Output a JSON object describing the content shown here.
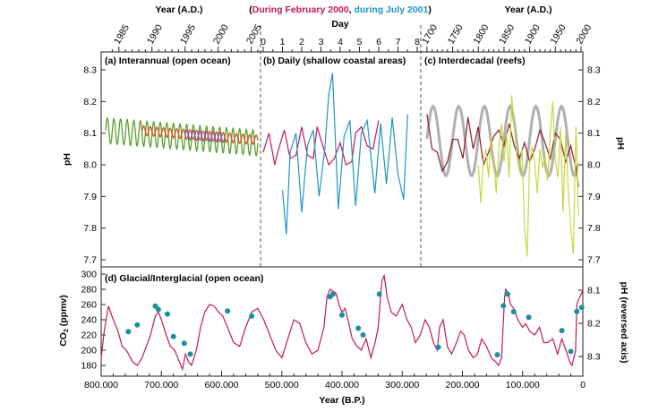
{
  "chart_data": [
    {
      "id": "a",
      "type": "line",
      "title": "(a) Interannual (open ocean)",
      "xlabel": "Year (A.D.)",
      "ylabel": "pH",
      "x_ticks": [
        "1985",
        "1990",
        "1995",
        "2000",
        "2005"
      ],
      "xlim": [
        1983,
        2006
      ],
      "ylim": [
        7.7,
        8.32
      ],
      "y_ticks": [
        "8.3",
        "8.2",
        "8.1",
        "8.0",
        "7.9",
        "7.8",
        "7.7"
      ],
      "series": [
        {
          "color": "#5aa02c",
          "x_start": 1983,
          "x_end": 2006,
          "period_years": 1,
          "mean": 8.108,
          "amplitude": 0.042,
          "trend_per_year": -0.0017
        },
        {
          "color": "#d94f1e",
          "x_start": 1988.5,
          "x_end": 2006,
          "period_years": 1,
          "mean": 8.108,
          "amplitude": 0.015,
          "trend_per_year": -0.0017
        },
        {
          "color": "#7b4fa8",
          "x_start": 1995,
          "x_end": 2001,
          "period_years": 1,
          "mean": 8.095,
          "amplitude": 0.015,
          "trend_per_year": -0.0015
        }
      ]
    },
    {
      "id": "b",
      "type": "line",
      "title": "(b) Daily (shallow coastal areas)",
      "xlabel": "Day",
      "ylabel": "",
      "x_ticks": [
        "0",
        "1",
        "2",
        "3",
        "4",
        "5",
        "6",
        "7",
        "8"
      ],
      "xlim": [
        0,
        8
      ],
      "ylim": [
        7.7,
        8.32
      ],
      "legend_prefix": "(",
      "legend_feb": "During February 2000",
      "legend_sep": ", ",
      "legend_jul": "during July 2001",
      "legend_suffix": ")",
      "series": [
        {
          "name": "During February 2000",
          "color": "#c2185b",
          "x": [
            0.0,
            0.3,
            0.6,
            0.8,
            1.1,
            1.4,
            1.7,
            2.0,
            2.3,
            2.6,
            2.8,
            3.1,
            3.4,
            3.7,
            4.0,
            4.3,
            4.6,
            4.8,
            5.1,
            5.4,
            5.7,
            6.0
          ],
          "y": [
            8.04,
            8.1,
            8.0,
            8.05,
            8.11,
            8.02,
            8.03,
            8.12,
            8.03,
            8.02,
            8.12,
            8.06,
            8.0,
            8.02,
            8.07,
            8.0,
            8.01,
            8.1,
            8.12,
            8.06,
            8.05,
            8.14
          ]
        },
        {
          "name": "during July 2001",
          "color": "#1f95c6",
          "x": [
            1.0,
            1.2,
            1.4,
            1.7,
            2.0,
            2.3,
            2.6,
            2.9,
            3.2,
            3.4,
            3.6,
            3.9,
            4.2,
            4.5,
            4.8,
            5.1,
            5.4,
            5.8,
            6.1,
            6.4,
            6.7,
            7.0,
            7.3,
            7.5
          ],
          "y": [
            7.92,
            7.78,
            8.04,
            8.1,
            7.85,
            8.06,
            8.11,
            7.9,
            8.05,
            8.22,
            8.29,
            7.86,
            8.09,
            8.14,
            7.87,
            8.1,
            8.14,
            7.91,
            8.13,
            7.94,
            8.15,
            7.97,
            7.89,
            8.16
          ]
        }
      ]
    },
    {
      "id": "c",
      "type": "line",
      "title": "(c) Interdecadal (reefs)",
      "xlabel": "Year (A.D.)",
      "ylabel": "pH",
      "x_ticks": [
        "1700",
        "1750",
        "1800",
        "1850",
        "1900",
        "1950",
        "2000"
      ],
      "xlim": [
        1695,
        2000
      ],
      "ylim": [
        7.7,
        8.32
      ],
      "y_ticks": [
        "8.3",
        "8.2",
        "8.1",
        "8.0",
        "7.9",
        "7.8",
        "7.7"
      ],
      "series": [
        {
          "color": "#b0b0b0",
          "x_start": 1700,
          "x_end": 1995,
          "period_years": 50,
          "mean": 8.075,
          "amplitude": 0.11,
          "phase_year": 1712
        },
        {
          "color": "#8b1a2b",
          "x": [
            1700,
            1710,
            1720,
            1730,
            1740,
            1750,
            1760,
            1770,
            1780,
            1790,
            1800,
            1810,
            1820,
            1830,
            1840,
            1850,
            1860,
            1870,
            1880,
            1890,
            1900,
            1910,
            1920,
            1930,
            1940,
            1950,
            1960,
            1970,
            1980,
            1990,
            1995
          ],
          "y": [
            8.16,
            8.05,
            8.04,
            7.98,
            8.01,
            8.08,
            8.08,
            8.02,
            8.15,
            8.05,
            8.12,
            8.0,
            8.04,
            8.09,
            8.11,
            8.06,
            8.13,
            8.06,
            8.02,
            8.07,
            8.01,
            8.05,
            8.11,
            8.07,
            8.02,
            8.1,
            8.08,
            8.01,
            8.06,
            7.99,
            7.93
          ]
        },
        {
          "color": "#c8d642",
          "x": [
            1800,
            1805,
            1810,
            1815,
            1820,
            1825,
            1830,
            1835,
            1840,
            1845,
            1850,
            1855,
            1860,
            1865,
            1870,
            1875,
            1880,
            1885,
            1890,
            1895,
            1900,
            1905,
            1910,
            1915,
            1920,
            1925,
            1930,
            1935,
            1940,
            1945,
            1950,
            1955,
            1960,
            1965,
            1970,
            1975,
            1980,
            1985,
            1990,
            1995
          ],
          "y": [
            8.0,
            7.88,
            8.02,
            8.05,
            7.96,
            8.09,
            8.02,
            7.91,
            8.05,
            8.13,
            8.01,
            8.1,
            7.96,
            8.22,
            8.12,
            8.03,
            7.98,
            8.05,
            7.8,
            7.71,
            8.01,
            8.06,
            8.0,
            7.91,
            8.05,
            7.99,
            8.03,
            7.95,
            8.1,
            8.2,
            8.01,
            7.96,
            8.12,
            7.85,
            8.1,
            7.92,
            7.8,
            7.72,
            8.12,
            7.84
          ]
        }
      ]
    },
    {
      "id": "d",
      "type": "line",
      "title": "(d) Glacial/Interglacial (open ocean)",
      "xlabel": "Year (B.P.)",
      "ylabel": "CO2 (ppmv)",
      "ylabel_right": "pH (reversed axis)",
      "x_ticks": [
        "800.000",
        "700.000",
        "600.000",
        "500.000",
        "400.000",
        "300.000",
        "200.000",
        "100.000",
        "0"
      ],
      "xlim": [
        800000,
        0
      ],
      "ylim": [
        170,
        300
      ],
      "y_ticks": [
        "300",
        "280",
        "260",
        "240",
        "220",
        "200",
        "180"
      ],
      "y2_ticks": [
        "8.1",
        "8.2",
        "8.3"
      ],
      "y2lim": [
        8.07,
        8.34
      ],
      "series": [
        {
          "name": "CO2",
          "color": "#c2185b",
          "x": [
            800000,
            795000,
            788000,
            780000,
            772000,
            765000,
            758000,
            748000,
            740000,
            732000,
            725000,
            718000,
            710000,
            705000,
            700000,
            692000,
            685000,
            678000,
            670000,
            665000,
            660000,
            655000,
            650000,
            642000,
            635000,
            628000,
            620000,
            612000,
            605000,
            598000,
            590000,
            580000,
            570000,
            560000,
            550000,
            540000,
            530000,
            520000,
            510000,
            500000,
            490000,
            480000,
            470000,
            460000,
            450000,
            440000,
            430000,
            425000,
            420000,
            410000,
            405000,
            400000,
            395000,
            390000,
            383000,
            375000,
            368000,
            360000,
            352000,
            345000,
            340000,
            337000,
            334000,
            330000,
            325000,
            318000,
            310000,
            300000,
            292000,
            285000,
            278000,
            270000,
            262000,
            255000,
            248000,
            242000,
            238000,
            232000,
            225000,
            218000,
            210000,
            203000,
            197000,
            190000,
            182000,
            175000,
            168000,
            160000,
            152000,
            145000,
            140000,
            135000,
            130000,
            128000,
            124000,
            120000,
            115000,
            108000,
            100000,
            95000,
            88000,
            80000,
            72000,
            65000,
            58000,
            50000,
            42000,
            35000,
            28000,
            22000,
            18000,
            15000,
            12000,
            10000,
            8000,
            5000,
            2000,
            0
          ],
          "y": [
            190,
            225,
            258,
            240,
            225,
            205,
            200,
            185,
            180,
            190,
            205,
            220,
            245,
            250,
            240,
            220,
            205,
            200,
            185,
            175,
            195,
            185,
            180,
            200,
            230,
            250,
            260,
            258,
            250,
            245,
            230,
            210,
            205,
            230,
            250,
            255,
            240,
            220,
            200,
            190,
            215,
            240,
            235,
            210,
            195,
            200,
            230,
            270,
            280,
            275,
            260,
            250,
            255,
            240,
            215,
            205,
            200,
            215,
            190,
            210,
            230,
            260,
            290,
            298,
            270,
            250,
            245,
            260,
            240,
            230,
            210,
            220,
            240,
            230,
            210,
            200,
            230,
            240,
            205,
            195,
            210,
            225,
            220,
            200,
            190,
            195,
            215,
            205,
            190,
            185,
            180,
            190,
            270,
            280,
            275,
            260,
            255,
            240,
            230,
            235,
            225,
            220,
            230,
            210,
            210,
            215,
            195,
            215,
            200,
            185,
            180,
            190,
            200,
            260,
            265,
            270,
            275,
            280
          ]
        },
        {
          "name": "pH",
          "color": "#1a8fa0",
          "x": [
            755000,
            740000,
            710000,
            705000,
            690000,
            680000,
            662000,
            652000,
            590000,
            550000,
            420000,
            415000,
            400000,
            373000,
            365000,
            338000,
            240000,
            142000,
            132000,
            125000,
            115000,
            90000,
            35000,
            20000,
            10000,
            2000
          ],
          "y": [
            8.225,
            8.205,
            8.148,
            8.158,
            8.172,
            8.24,
            8.26,
            8.293,
            8.163,
            8.178,
            8.12,
            8.112,
            8.175,
            8.215,
            8.235,
            8.112,
            8.272,
            8.295,
            8.147,
            8.112,
            8.165,
            8.182,
            8.222,
            8.285,
            8.164,
            8.152
          ]
        }
      ]
    }
  ]
}
